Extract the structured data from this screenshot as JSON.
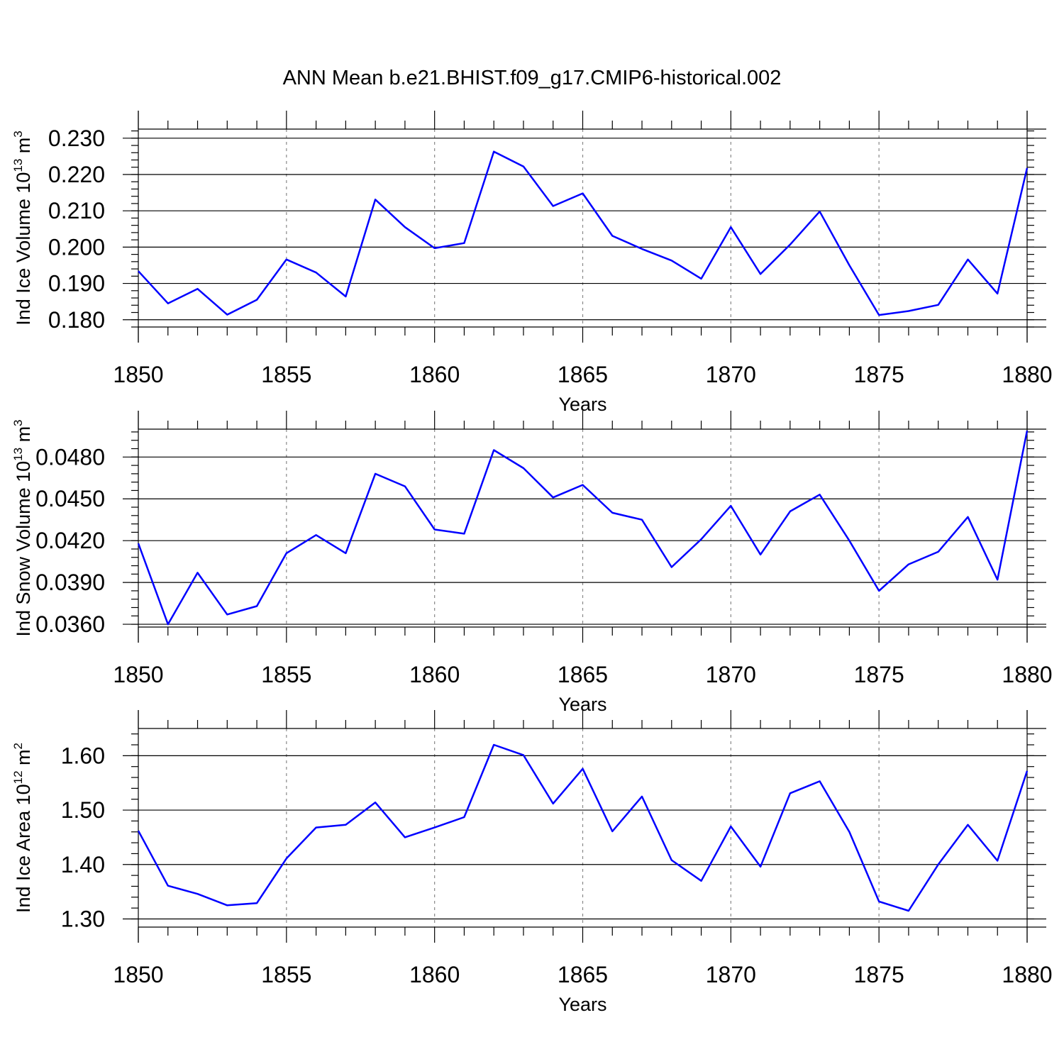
{
  "title": "ANN Mean b.e21.BHIST.f09_g17.CMIP6-historical.002",
  "chart_data": [
    {
      "type": "line",
      "title": "ANN Mean b.e21.BHIST.f09_g17.CMIP6-historical.002",
      "ylabel_main": "Ind Ice Volume 10",
      "ylabel_exp": "13",
      "ylabel_unit": " m",
      "ylabel_unit_exp": "3",
      "xlabel": "Years",
      "xlim": [
        1850,
        1880
      ],
      "ylim": [
        0.178,
        0.2325
      ],
      "yticks": [
        0.18,
        0.19,
        0.2,
        0.21,
        0.22,
        0.23
      ],
      "yticklabels": [
        "0.180",
        "0.190",
        "0.200",
        "0.210",
        "0.220",
        "0.230"
      ],
      "xticks": [
        1850,
        1855,
        1860,
        1865,
        1870,
        1875,
        1880
      ],
      "xticklabels": [
        "1850",
        "1855",
        "1860",
        "1865",
        "1870",
        "1875",
        "1880"
      ],
      "color": "#0000ff",
      "x": [
        1850,
        1851,
        1852,
        1853,
        1854,
        1855,
        1856,
        1857,
        1858,
        1859,
        1860,
        1861,
        1862,
        1863,
        1864,
        1865,
        1866,
        1867,
        1868,
        1869,
        1870,
        1871,
        1872,
        1873,
        1874,
        1875,
        1876,
        1877,
        1878,
        1879,
        1880
      ],
      "values": [
        0.1934,
        0.1845,
        0.1885,
        0.1814,
        0.1855,
        0.1966,
        0.193,
        0.1864,
        0.2131,
        0.2055,
        0.1997,
        0.2011,
        0.2263,
        0.2222,
        0.2113,
        0.2148,
        0.2031,
        0.1995,
        0.1963,
        0.1913,
        0.2055,
        0.1926,
        0.2007,
        0.2098,
        0.195,
        0.1813,
        0.1824,
        0.1841,
        0.1966,
        0.1872,
        0.2218
      ]
    },
    {
      "type": "line",
      "ylabel_main": "Ind Snow Volume 10",
      "ylabel_exp": "13",
      "ylabel_unit": " m",
      "ylabel_unit_exp": "3",
      "xlabel": "Years",
      "xlim": [
        1850,
        1880
      ],
      "ylim": [
        0.0358,
        0.05
      ],
      "yticks": [
        0.036,
        0.039,
        0.042,
        0.045,
        0.048
      ],
      "yticklabels": [
        "0.0360",
        "0.0390",
        "0.0420",
        "0.0450",
        "0.0480"
      ],
      "xticks": [
        1850,
        1855,
        1860,
        1865,
        1870,
        1875,
        1880
      ],
      "xticklabels": [
        "1850",
        "1855",
        "1860",
        "1865",
        "1870",
        "1875",
        "1880"
      ],
      "color": "#0000ff",
      "x": [
        1850,
        1851,
        1852,
        1853,
        1854,
        1855,
        1856,
        1857,
        1858,
        1859,
        1860,
        1861,
        1862,
        1863,
        1864,
        1865,
        1866,
        1867,
        1868,
        1869,
        1870,
        1871,
        1872,
        1873,
        1874,
        1875,
        1876,
        1877,
        1878,
        1879,
        1880
      ],
      "values": [
        0.0418,
        0.036,
        0.0397,
        0.0367,
        0.0373,
        0.0411,
        0.0424,
        0.0411,
        0.0468,
        0.0459,
        0.0428,
        0.0425,
        0.0485,
        0.0472,
        0.0451,
        0.046,
        0.044,
        0.0435,
        0.0401,
        0.0421,
        0.0445,
        0.041,
        0.0441,
        0.0453,
        0.042,
        0.0384,
        0.0403,
        0.0412,
        0.0437,
        0.0392,
        0.0499
      ]
    },
    {
      "type": "line",
      "ylabel_main": "Ind Ice Area 10",
      "ylabel_exp": "12",
      "ylabel_unit": " m",
      "ylabel_unit_exp": "2",
      "xlabel": "Years",
      "xlim": [
        1850,
        1880
      ],
      "ylim": [
        1.285,
        1.65
      ],
      "yticks": [
        1.3,
        1.4,
        1.5,
        1.6
      ],
      "yticklabels": [
        "1.30",
        "1.40",
        "1.50",
        "1.60"
      ],
      "xticks": [
        1850,
        1855,
        1860,
        1865,
        1870,
        1875,
        1880
      ],
      "xticklabels": [
        "1850",
        "1855",
        "1860",
        "1865",
        "1870",
        "1875",
        "1880"
      ],
      "color": "#0000ff",
      "x": [
        1850,
        1851,
        1852,
        1853,
        1854,
        1855,
        1856,
        1857,
        1858,
        1859,
        1860,
        1861,
        1862,
        1863,
        1864,
        1865,
        1866,
        1867,
        1868,
        1869,
        1870,
        1871,
        1872,
        1873,
        1874,
        1875,
        1876,
        1877,
        1878,
        1879,
        1880
      ],
      "values": [
        1.462,
        1.361,
        1.346,
        1.325,
        1.329,
        1.411,
        1.468,
        1.473,
        1.514,
        1.45,
        1.468,
        1.487,
        1.62,
        1.601,
        1.512,
        1.576,
        1.461,
        1.525,
        1.408,
        1.37,
        1.47,
        1.396,
        1.531,
        1.553,
        1.46,
        1.332,
        1.315,
        1.4,
        1.473,
        1.407,
        1.572
      ]
    }
  ]
}
